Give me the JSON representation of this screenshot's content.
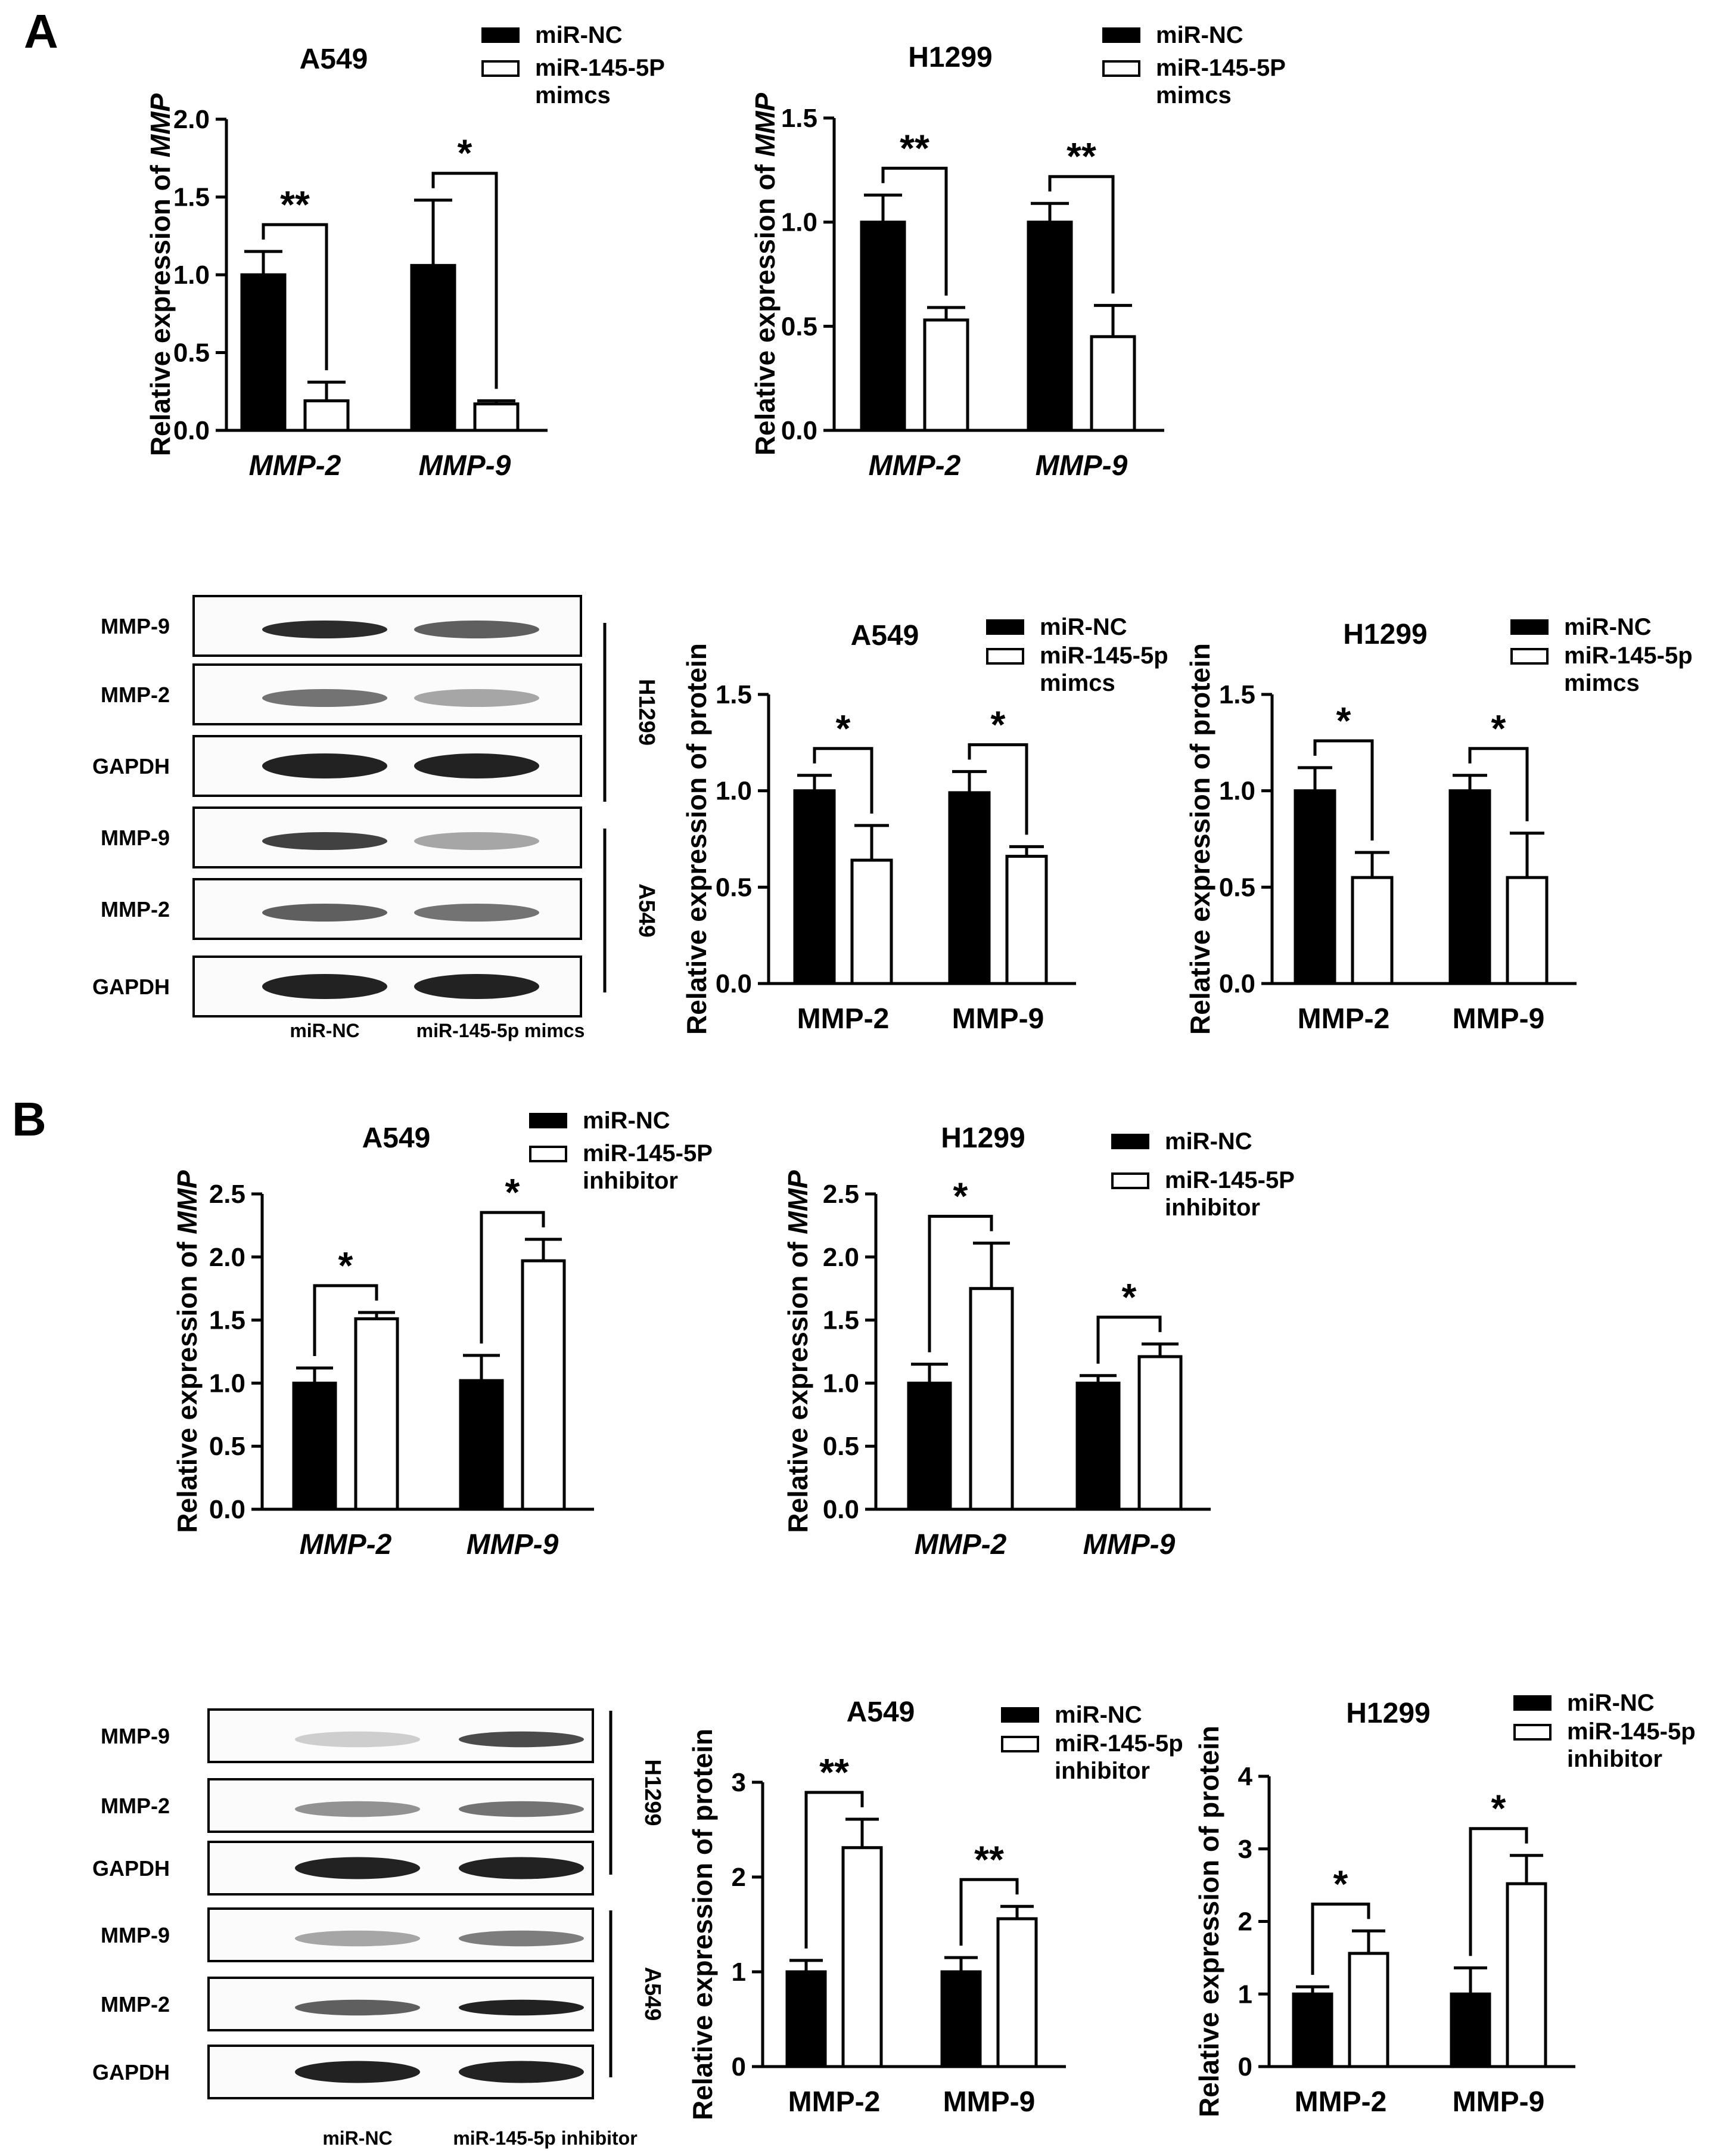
{
  "panels": {
    "A": "A",
    "B": "B"
  },
  "legend": {
    "nc": "miR-NC"
  },
  "chart_data": [
    {
      "id": "A-mRNA-A549",
      "type": "bar",
      "title": "A549",
      "ylabel_prefix": "Relative expression of ",
      "ylabel_italic": "MMP",
      "categories": [
        "MMP-2",
        "MMP-9"
      ],
      "italic_categories": true,
      "ylim": [
        0,
        2.0
      ],
      "yticks": [
        "0.0",
        "0.5",
        "1.0",
        "1.5",
        "2.0"
      ],
      "series": [
        {
          "name": "miR-NC",
          "values": [
            1.0,
            1.06
          ],
          "errors": [
            0.15,
            0.42
          ]
        },
        {
          "name": "miR-145-5P mimcs",
          "values": [
            0.19,
            0.17
          ],
          "errors": [
            0.12,
            0.02
          ]
        }
      ],
      "legend_lines": [
        "miR-145-5P",
        "mimcs"
      ],
      "significance": [
        "**",
        "*"
      ]
    },
    {
      "id": "A-mRNA-H1299",
      "type": "bar",
      "title": "H1299",
      "ylabel_prefix": "Relative expression of ",
      "ylabel_italic": "MMP",
      "categories": [
        "MMP-2",
        "MMP-9"
      ],
      "italic_categories": true,
      "ylim": [
        0,
        1.5
      ],
      "yticks": [
        "0.0",
        "0.5",
        "1.0",
        "1.5"
      ],
      "series": [
        {
          "name": "miR-NC",
          "values": [
            1.0,
            1.0
          ],
          "errors": [
            0.13,
            0.09
          ]
        },
        {
          "name": "miR-145-5P mimcs",
          "values": [
            0.53,
            0.45
          ],
          "errors": [
            0.06,
            0.15
          ]
        }
      ],
      "legend_lines": [
        "miR-145-5P",
        "mimcs"
      ],
      "significance": [
        "**",
        "**"
      ]
    },
    {
      "id": "A-protein-A549",
      "type": "bar",
      "title": "A549",
      "ylabel_prefix": "Relative expression of protein",
      "ylabel_italic": "",
      "categories": [
        "MMP-2",
        "MMP-9"
      ],
      "italic_categories": false,
      "ylim": [
        0,
        1.5
      ],
      "yticks": [
        "0.0",
        "0.5",
        "1.0",
        "1.5"
      ],
      "series": [
        {
          "name": "miR-NC",
          "values": [
            1.0,
            0.99
          ],
          "errors": [
            0.08,
            0.11
          ]
        },
        {
          "name": "miR-145-5p mimcs",
          "values": [
            0.64,
            0.66
          ],
          "errors": [
            0.18,
            0.05
          ]
        }
      ],
      "legend_lines": [
        "miR-145-5p",
        "mimcs"
      ],
      "significance": [
        "*",
        "*"
      ]
    },
    {
      "id": "A-protein-H1299",
      "type": "bar",
      "title": "H1299",
      "ylabel_prefix": "Relative expression of protein",
      "ylabel_italic": "",
      "categories": [
        "MMP-2",
        "MMP-9"
      ],
      "italic_categories": false,
      "ylim": [
        0,
        1.5
      ],
      "yticks": [
        "0.0",
        "0.5",
        "1.0",
        "1.5"
      ],
      "series": [
        {
          "name": "miR-NC",
          "values": [
            1.0,
            1.0
          ],
          "errors": [
            0.12,
            0.08
          ]
        },
        {
          "name": "miR-145-5p mimcs",
          "values": [
            0.55,
            0.55
          ],
          "errors": [
            0.13,
            0.23
          ]
        }
      ],
      "legend_lines": [
        "miR-145-5p",
        "mimcs"
      ],
      "significance": [
        "*",
        "*"
      ]
    },
    {
      "id": "B-mRNA-A549",
      "type": "bar",
      "title": "A549",
      "ylabel_prefix": "Relative expression of ",
      "ylabel_italic": "MMP",
      "categories": [
        "MMP-2",
        "MMP-9"
      ],
      "italic_categories": true,
      "ylim": [
        0,
        2.5
      ],
      "yticks": [
        "0.0",
        "0.5",
        "1.0",
        "1.5",
        "2.0",
        "2.5"
      ],
      "series": [
        {
          "name": "miR-NC",
          "values": [
            1.0,
            1.02
          ],
          "errors": [
            0.12,
            0.2
          ]
        },
        {
          "name": "miR-145-5P inhibitor",
          "values": [
            1.51,
            1.97
          ],
          "errors": [
            0.05,
            0.17
          ]
        }
      ],
      "legend_lines": [
        "miR-145-5P",
        "inhibitor"
      ],
      "significance": [
        "*",
        "*"
      ]
    },
    {
      "id": "B-mRNA-H1299",
      "type": "bar",
      "title": "H1299",
      "ylabel_prefix": "Relative expression of ",
      "ylabel_italic": "MMP",
      "categories": [
        "MMP-2",
        "MMP-9"
      ],
      "italic_categories": true,
      "ylim": [
        0,
        2.5
      ],
      "yticks": [
        "0.0",
        "0.5",
        "1.0",
        "1.5",
        "2.0",
        "2.5"
      ],
      "series": [
        {
          "name": "miR-NC",
          "values": [
            1.0,
            1.0
          ],
          "errors": [
            0.15,
            0.06
          ]
        },
        {
          "name": "miR-145-5P inhibitor",
          "values": [
            1.75,
            1.21
          ],
          "errors": [
            0.36,
            0.1
          ]
        }
      ],
      "legend_lines": [
        "miR-145-5P",
        "inhibitor"
      ],
      "significance": [
        "*",
        "*"
      ]
    },
    {
      "id": "B-protein-A549",
      "type": "bar",
      "title": "A549",
      "ylabel_prefix": "Relative expression of protein",
      "ylabel_italic": "",
      "categories": [
        "MMP-2",
        "MMP-9"
      ],
      "italic_categories": false,
      "ylim": [
        0,
        3
      ],
      "yticks": [
        "0",
        "1",
        "2",
        "3"
      ],
      "series": [
        {
          "name": "miR-NC",
          "values": [
            1.0,
            1.0
          ],
          "errors": [
            0.12,
            0.15
          ]
        },
        {
          "name": "miR-145-5p inhibitor",
          "values": [
            2.31,
            1.56
          ],
          "errors": [
            0.3,
            0.13
          ]
        }
      ],
      "legend_lines": [
        "miR-145-5p",
        "inhibitor"
      ],
      "significance": [
        "**",
        "**"
      ]
    },
    {
      "id": "B-protein-H1299",
      "type": "bar",
      "title": "H1299",
      "ylabel_prefix": "Relative expression of protein",
      "ylabel_italic": "",
      "categories": [
        "MMP-2",
        "MMP-9"
      ],
      "italic_categories": false,
      "ylim": [
        0,
        4
      ],
      "yticks": [
        "0",
        "1",
        "2",
        "3",
        "4"
      ],
      "series": [
        {
          "name": "miR-NC",
          "values": [
            1.0,
            1.0
          ],
          "errors": [
            0.1,
            0.36
          ]
        },
        {
          "name": "miR-145-5p inhibitor",
          "values": [
            1.56,
            2.52
          ],
          "errors": [
            0.31,
            0.39
          ]
        }
      ],
      "legend_lines": [
        "miR-145-5p",
        "inhibitor"
      ],
      "significance": [
        "*",
        "*"
      ]
    }
  ],
  "blots": [
    {
      "id": "blot-A",
      "rows": [
        "MMP-9",
        "MMP-2",
        "GAPDH",
        "MMP-9",
        "MMP-2",
        "GAPDH"
      ],
      "groups": [
        "H1299",
        "A549"
      ],
      "lanes": [
        "miR-NC",
        "miR-145-5p mimcs"
      ],
      "band_intensity": [
        [
          0.95,
          0.7
        ],
        [
          0.6,
          0.35
        ],
        [
          1.0,
          1.0
        ],
        [
          0.85,
          0.35
        ],
        [
          0.7,
          0.6
        ],
        [
          1.0,
          1.0
        ]
      ]
    },
    {
      "id": "blot-B",
      "rows": [
        "MMP-9",
        "MMP-2",
        "GAPDH",
        "MMP-9",
        "MMP-2",
        "GAPDH"
      ],
      "groups": [
        "H1299",
        "A549"
      ],
      "lanes": [
        "miR-NC",
        "miR-145-5p inhibitor"
      ],
      "band_intensity": [
        [
          0.15,
          0.8
        ],
        [
          0.45,
          0.6
        ],
        [
          1.0,
          1.0
        ],
        [
          0.35,
          0.55
        ],
        [
          0.7,
          1.0
        ],
        [
          1.0,
          1.0
        ]
      ]
    }
  ]
}
